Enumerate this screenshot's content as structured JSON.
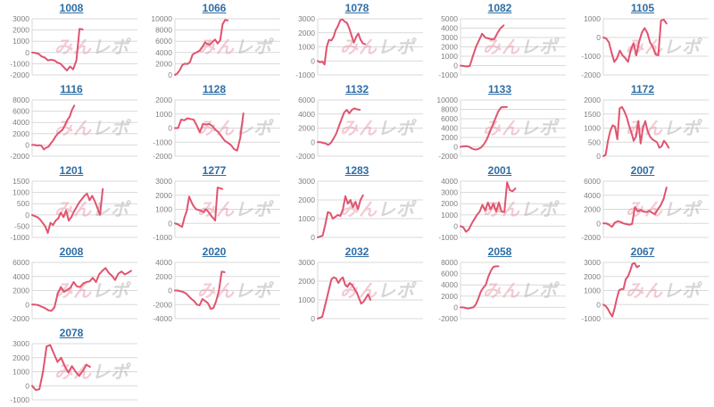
{
  "page": {
    "background": "#ffffff"
  },
  "styles": {
    "line_color": "#e0546f",
    "grid_color": "#d9d9d9",
    "tick_color": "#808080",
    "link_color": "#2e6da4",
    "watermark_pink": "#e8a0b0",
    "watermark_gray": "#b5b5b5"
  },
  "watermark": {
    "part1": "みん",
    "part2": "レポ"
  },
  "chart_data": [
    {
      "id": "1008",
      "type": "line",
      "yticks": [
        3000,
        2000,
        1000,
        0,
        -1000,
        -2000
      ],
      "xspan": 0.48,
      "values": [
        0,
        -50,
        -100,
        -350,
        -450,
        -700,
        -650,
        -700,
        -900,
        -1000,
        -1300,
        -1600,
        -1250,
        -1500,
        -700,
        2100,
        2050
      ]
    },
    {
      "id": "1066",
      "type": "line",
      "yticks": [
        10000,
        8000,
        6000,
        4000,
        2000,
        0
      ],
      "xspan": 0.5,
      "values": [
        0,
        300,
        900,
        1800,
        2000,
        1950,
        2300,
        3600,
        3900,
        4100,
        4400,
        5000,
        5800,
        5500,
        5400,
        5900,
        6300,
        5600,
        6100,
        9000,
        9800,
        9700
      ]
    },
    {
      "id": "1078",
      "type": "line",
      "yticks": [
        3000,
        2000,
        1000,
        0,
        -1000
      ],
      "xspan": 0.45,
      "values": [
        0,
        -100,
        -50,
        -250,
        1000,
        1500,
        1450,
        1700,
        2200,
        2500,
        2900,
        2950,
        2800,
        2700,
        2300,
        1800,
        1300,
        1700,
        1950,
        1500,
        1250,
        1200
      ]
    },
    {
      "id": "1082",
      "type": "line",
      "yticks": [
        5000,
        4000,
        3000,
        2000,
        1000,
        0,
        -1000
      ],
      "xspan": 0.41,
      "values": [
        0,
        -50,
        -100,
        -50,
        1000,
        2000,
        2700,
        3400,
        3000,
        2900,
        2800,
        2850,
        3500,
        4000,
        4300
      ]
    },
    {
      "id": "1105",
      "type": "line",
      "yticks": [
        1000,
        0,
        -1000,
        -2000
      ],
      "xspan": 0.6,
      "values": [
        0,
        -50,
        -250,
        -800,
        -1300,
        -1100,
        -700,
        -950,
        -1100,
        -1300,
        -650,
        -300,
        -950,
        -250,
        250,
        500,
        250,
        -250,
        -500,
        -900,
        -950,
        900,
        950,
        750
      ]
    },
    {
      "id": "1116",
      "type": "line",
      "yticks": [
        8000,
        6000,
        4000,
        2000,
        0,
        -2000
      ],
      "xspan": 0.4,
      "values": [
        0,
        0,
        -100,
        -50,
        -150,
        -800,
        -500,
        -300,
        300,
        800,
        1500,
        2000,
        2400,
        2700,
        3500,
        4400,
        5000,
        6200,
        7000
      ]
    },
    {
      "id": "1128",
      "type": "line",
      "yticks": [
        2000,
        1000,
        0,
        -1000,
        -2000
      ],
      "xspan": 0.65,
      "values": [
        0,
        0,
        600,
        550,
        700,
        650,
        600,
        200,
        -300,
        300,
        250,
        300,
        150,
        -100,
        -300,
        -600,
        -900,
        -1050,
        -1200,
        -1500,
        -1600,
        -700,
        1050
      ]
    },
    {
      "id": "1132",
      "type": "line",
      "yticks": [
        6000,
        4000,
        2000,
        0,
        -2000
      ],
      "xspan": 0.4,
      "values": [
        0,
        0,
        -100,
        -200,
        -400,
        -100,
        500,
        1200,
        2200,
        3200,
        4200,
        4600,
        4100,
        4600,
        4800,
        4650,
        4600
      ]
    },
    {
      "id": "1133",
      "type": "line",
      "yticks": [
        10000,
        8000,
        6000,
        4000,
        2000,
        0,
        -2000
      ],
      "xspan": 0.44,
      "values": [
        0,
        100,
        150,
        0,
        -400,
        -600,
        -500,
        -200,
        500,
        1500,
        3000,
        4500,
        6000,
        7500,
        8400,
        8500,
        8500
      ]
    },
    {
      "id": "1172",
      "type": "line",
      "yticks": [
        2000,
        1500,
        1000,
        500,
        0
      ],
      "xspan": 0.62,
      "values": [
        0,
        50,
        550,
        900,
        1100,
        1050,
        600,
        1700,
        1750,
        1600,
        1400,
        1100,
        850,
        550,
        700,
        1250,
        450,
        1000,
        1250,
        900,
        700,
        600,
        550,
        500,
        300,
        350,
        550,
        450,
        300
      ]
    },
    {
      "id": "1201",
      "type": "line",
      "yticks": [
        1500,
        1000,
        500,
        0,
        -500,
        -1000
      ],
      "xspan": 0.67,
      "values": [
        0,
        -50,
        -100,
        -200,
        -350,
        -500,
        -800,
        -350,
        -450,
        -250,
        -150,
        100,
        -100,
        200,
        -250,
        -100,
        150,
        350,
        550,
        700,
        850,
        950,
        650,
        850,
        600,
        300,
        0,
        1150
      ]
    },
    {
      "id": "1277",
      "type": "line",
      "yticks": [
        3000,
        2000,
        1000,
        0,
        -1000
      ],
      "xspan": 0.45,
      "values": [
        0,
        -50,
        -150,
        -250,
        400,
        900,
        1900,
        1500,
        1200,
        1000,
        950,
        900,
        800,
        1000,
        850,
        600,
        400,
        200,
        2550,
        2500,
        2450
      ]
    },
    {
      "id": "1283",
      "type": "line",
      "yticks": [
        3000,
        2000,
        1000,
        0
      ],
      "xspan": 0.43,
      "values": [
        0,
        50,
        100,
        700,
        1350,
        1300,
        1000,
        1100,
        1200,
        1150,
        1500,
        2200,
        1800,
        2000,
        1600,
        1900,
        1500,
        2000,
        2250
      ]
    },
    {
      "id": "2001",
      "type": "line",
      "yticks": [
        4000,
        3000,
        2000,
        1000,
        0,
        -1000
      ],
      "xspan": 0.52,
      "values": [
        0,
        -100,
        -500,
        -300,
        200,
        600,
        1000,
        1300,
        1900,
        1400,
        2100,
        1500,
        2000,
        1300,
        2100,
        1300,
        1250,
        3900,
        3200,
        3100,
        3350
      ]
    },
    {
      "id": "2007",
      "type": "line",
      "yticks": [
        6000,
        4000,
        2000,
        0,
        -2000
      ],
      "xspan": 0.6,
      "values": [
        0,
        0,
        -200,
        -500,
        100,
        300,
        200,
        0,
        -100,
        -200,
        -100,
        2300,
        1700,
        1900,
        1700,
        1600,
        1800,
        1500,
        1300,
        2000,
        2600,
        3500,
        5100
      ]
    },
    {
      "id": "2008",
      "type": "line",
      "yticks": [
        6000,
        4000,
        2000,
        0,
        -2000
      ],
      "xspan": 0.94,
      "values": [
        0,
        0,
        -100,
        -300,
        -500,
        -800,
        -900,
        -400,
        1500,
        2500,
        1800,
        2100,
        2400,
        3200,
        2600,
        2500,
        3000,
        3200,
        3300,
        3800,
        3200,
        4300,
        4800,
        5200,
        4500,
        4100,
        3500,
        4400,
        4700,
        4300,
        4500,
        4800
      ]
    },
    {
      "id": "2020",
      "type": "line",
      "yticks": [
        4000,
        2000,
        0,
        -2000,
        -4000
      ],
      "xspan": 0.47,
      "values": [
        0,
        0,
        -100,
        -200,
        -400,
        -800,
        -1200,
        -1500,
        -2000,
        -2100,
        -1200,
        -1500,
        -1800,
        -2600,
        -2500,
        -1500,
        0,
        2700,
        2600
      ]
    },
    {
      "id": "2032",
      "type": "line",
      "yticks": [
        3000,
        2000,
        1000,
        0
      ],
      "xspan": 0.5,
      "values": [
        0,
        50,
        100,
        600,
        1100,
        1600,
        2100,
        2200,
        2150,
        1900,
        2100,
        2200,
        1800,
        1700,
        1900,
        1800,
        1600,
        1400,
        1100,
        800,
        900,
        1100,
        1300,
        1000
      ]
    },
    {
      "id": "2058",
      "type": "line",
      "yticks": [
        8000,
        6000,
        4000,
        2000,
        0,
        -2000
      ],
      "xspan": 0.36,
      "values": [
        0,
        0,
        -100,
        -200,
        -100,
        0,
        500,
        1500,
        2800,
        3500,
        4000,
        5500,
        6500,
        7200,
        7300,
        7300
      ]
    },
    {
      "id": "2067",
      "type": "line",
      "yticks": [
        3000,
        2000,
        1000,
        0,
        -1000
      ],
      "xspan": 0.34,
      "values": [
        0,
        -100,
        -300,
        -600,
        -850,
        -300,
        400,
        1000,
        1100,
        1100,
        1800,
        2000,
        2400,
        2900,
        2950,
        2650,
        2750
      ]
    },
    {
      "id": "2078",
      "type": "line",
      "yticks": [
        3000,
        2000,
        1000,
        0,
        -1000
      ],
      "xspan": 0.55,
      "values": [
        0,
        -300,
        -250,
        1000,
        2800,
        2900,
        2300,
        1700,
        2000,
        1400,
        950,
        1400,
        1000,
        700,
        1050,
        1500,
        1350
      ]
    }
  ]
}
